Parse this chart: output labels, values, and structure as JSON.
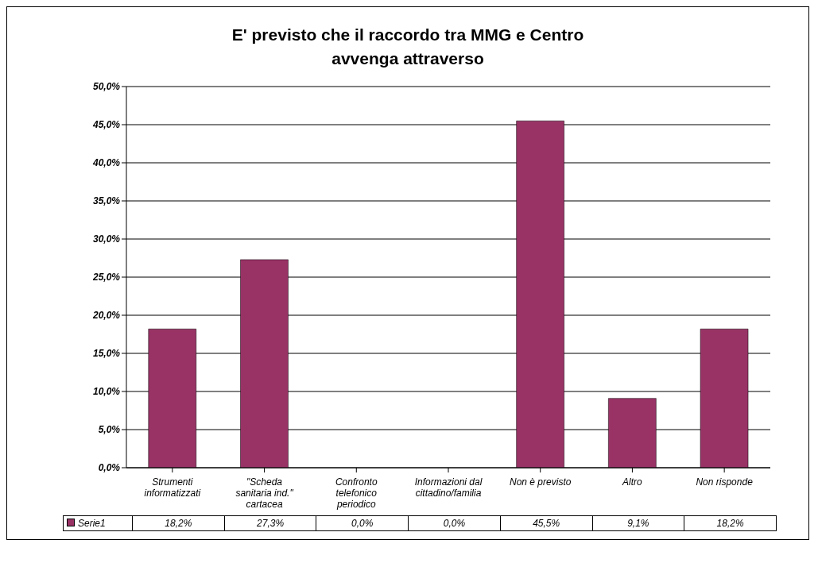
{
  "chart_data": {
    "type": "bar",
    "title": "E' previsto che il raccordo tra MMG e Centro\navvenga attraverso",
    "categories": [
      "Strumenti informatizzati",
      "\"Scheda sanitaria ind.\" cartacea",
      "Confronto telefonico periodico",
      "Informazioni dal cittadino/familia",
      "Non è previsto",
      "Altro",
      "Non risponde"
    ],
    "series": [
      {
        "name": "Serie1",
        "color": "#993366",
        "values": [
          18.2,
          27.3,
          0,
          0,
          45.5,
          9.1,
          18.2
        ],
        "value_labels": [
          "18,2%",
          "27,3%",
          "0,0%",
          "0,0%",
          "45,5%",
          "9,1%",
          "18,2%"
        ]
      }
    ],
    "ylim": [
      0,
      50
    ],
    "yticks": [
      {
        "value": 0,
        "label": "0,0%"
      },
      {
        "value": 5,
        "label": "5,0%"
      },
      {
        "value": 10,
        "label": "10,0%"
      },
      {
        "value": 15,
        "label": "15,0%"
      },
      {
        "value": 20,
        "label": "20,0%"
      },
      {
        "value": 25,
        "label": "25,0%"
      },
      {
        "value": 30,
        "label": "30,0%"
      },
      {
        "value": 35,
        "label": "35,0%"
      },
      {
        "value": 40,
        "label": "40,0%"
      },
      {
        "value": 45,
        "label": "45,0%"
      },
      {
        "value": 50,
        "label": "50,0%"
      }
    ],
    "grid": "y",
    "legend": "bottom"
  }
}
